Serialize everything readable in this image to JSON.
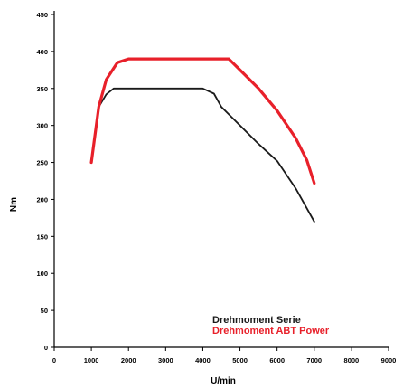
{
  "chart_data": {
    "type": "line",
    "title": "",
    "xlabel": "U/min",
    "ylabel": "Nm",
    "xlim": [
      0,
      9000
    ],
    "ylim": [
      0,
      450
    ],
    "xticks": [
      0,
      1000,
      2000,
      3000,
      4000,
      5000,
      6000,
      7000,
      8000,
      9000
    ],
    "yticks": [
      0,
      50,
      100,
      150,
      200,
      250,
      300,
      350,
      400,
      450
    ],
    "grid": false,
    "legend_position": "bottom-right",
    "series": [
      {
        "name": "Drehmoment Serie",
        "color": "#1a1a1a",
        "x": [
          1000,
          1200,
          1400,
          1600,
          2000,
          3000,
          3800,
          4000,
          4300,
          4500,
          5000,
          5500,
          6000,
          6500,
          7000
        ],
        "y": [
          250,
          325,
          342,
          350,
          350,
          350,
          350,
          350,
          343,
          325,
          300,
          275,
          252,
          215,
          170
        ]
      },
      {
        "name": "Drehmoment ABT Power",
        "color": "#e8202a",
        "x": [
          1000,
          1200,
          1400,
          1700,
          2000,
          3000,
          4000,
          4700,
          5000,
          5500,
          6000,
          6500,
          6800,
          7000
        ],
        "y": [
          250,
          325,
          362,
          385,
          390,
          390,
          390,
          390,
          375,
          350,
          320,
          283,
          253,
          222
        ]
      }
    ]
  }
}
